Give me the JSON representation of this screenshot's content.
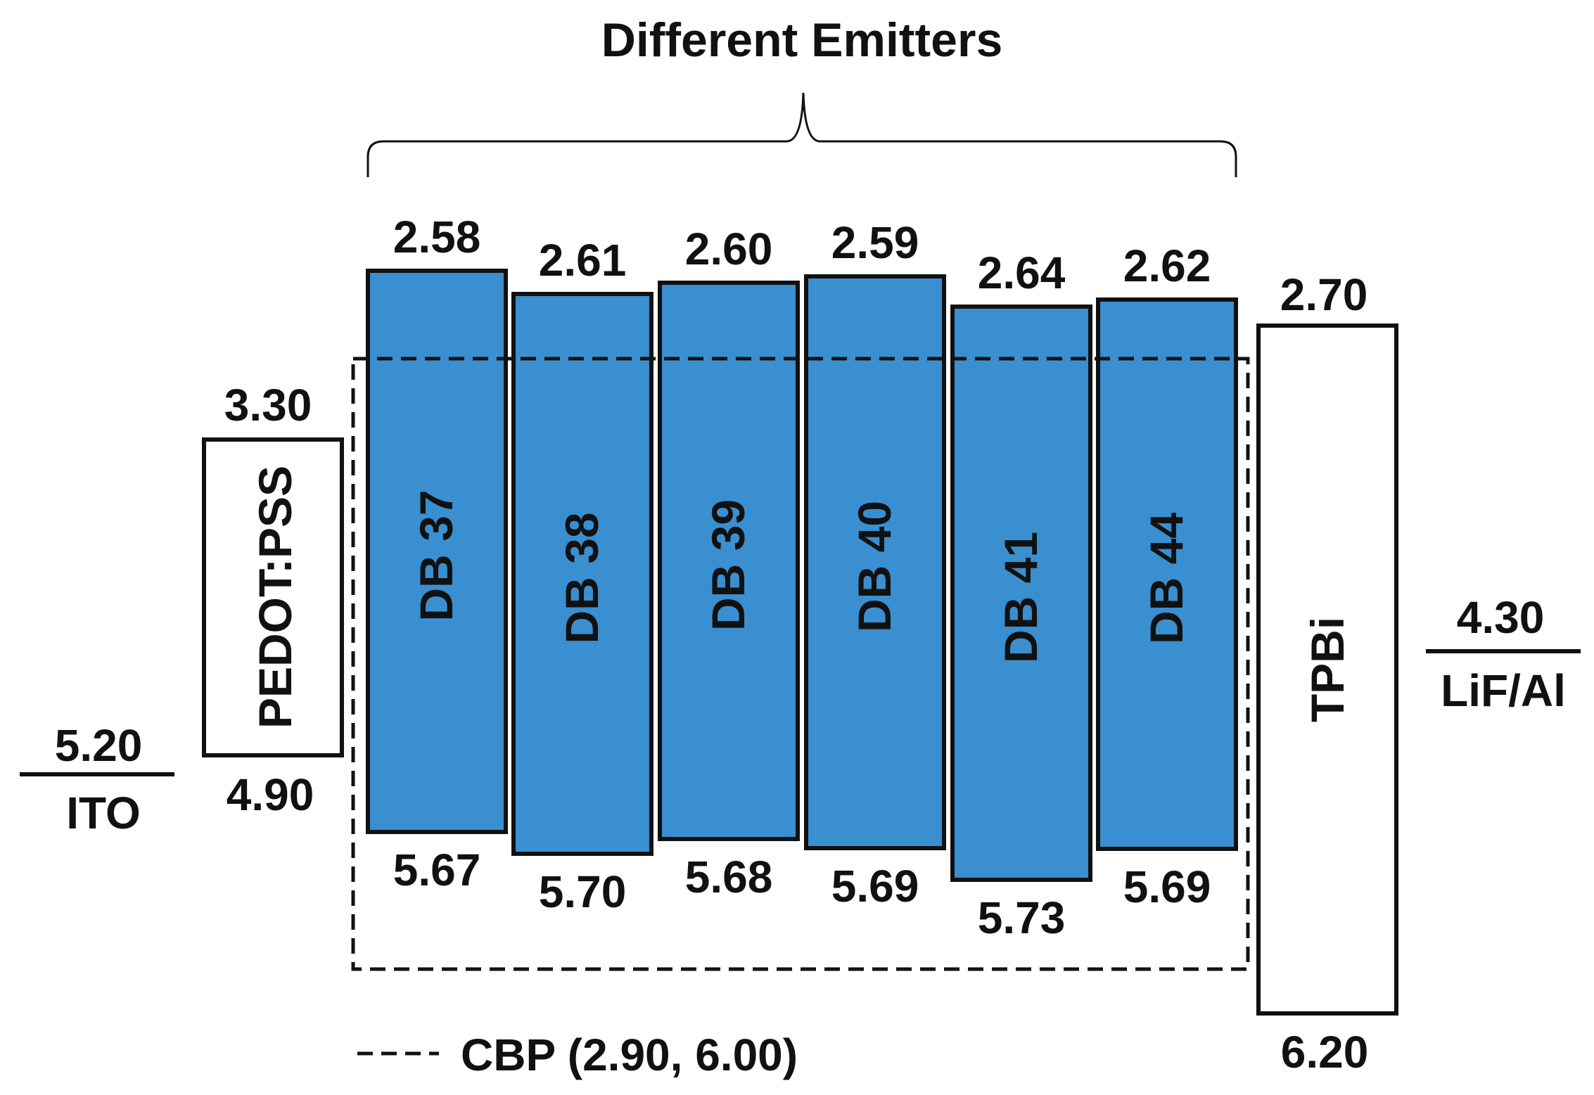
{
  "diagram": {
    "title": "Different Emitters",
    "legend": "CBP (2.90, 6.00)",
    "colors": {
      "emitter_fill": "#3a8fd0",
      "stroke": "#111111",
      "background": "#ffffff"
    },
    "ito": {
      "name": "ITO",
      "level": "5.20"
    },
    "pedot": {
      "name": "PEDOT:PSS",
      "lumo": "3.30",
      "homo": "4.90"
    },
    "emitters": [
      {
        "name": "DB 37",
        "lumo": "2.58",
        "homo": "5.67"
      },
      {
        "name": "DB 38",
        "lumo": "2.61",
        "homo": "5.70"
      },
      {
        "name": "DB 39",
        "lumo": "2.60",
        "homo": "5.68"
      },
      {
        "name": "DB 40",
        "lumo": "2.59",
        "homo": "5.69"
      },
      {
        "name": "DB 41",
        "lumo": "2.64",
        "homo": "5.73"
      },
      {
        "name": "DB 44",
        "lumo": "2.62",
        "homo": "5.69"
      }
    ],
    "tpbi": {
      "name": "TPBi",
      "lumo": "2.70",
      "homo": "6.20"
    },
    "cathode": {
      "name": "LiF/Al",
      "level": "4.30"
    }
  }
}
